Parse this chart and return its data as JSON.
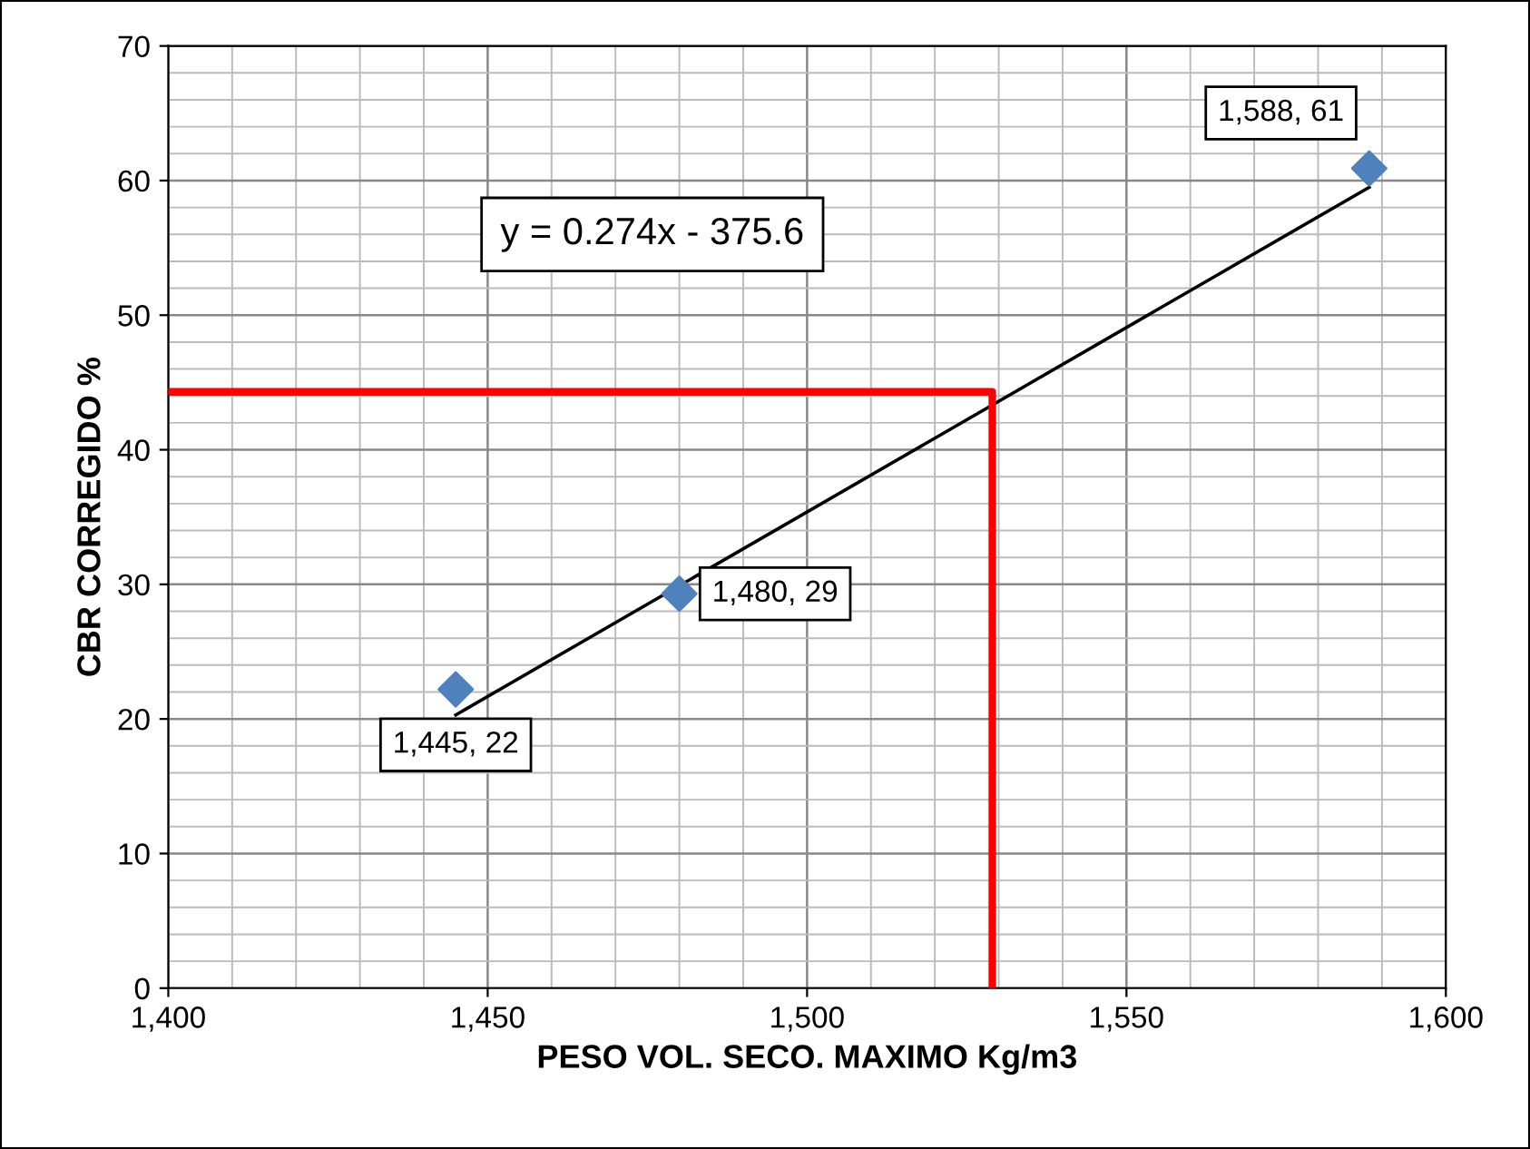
{
  "chart_data": {
    "type": "scatter",
    "xlabel": "PESO VOL. SECO. MAXIMO Kg/m3",
    "ylabel": "CBR CORREGIDO %",
    "series": [
      {
        "color": "#4f81bd",
        "marker": "diamond",
        "x": [
          1445,
          1480,
          1588
        ],
        "values": [
          22.2,
          29.3,
          60.9
        ],
        "value_labels": [
          "1,445, 22",
          "1,480, 29",
          "1,588, 61"
        ]
      },
      {
        "type": "line",
        "color": "#000000",
        "marker": "none",
        "x": [
          1445,
          1588
        ],
        "values": [
          20.3,
          59.5
        ]
      },
      {
        "type": "line",
        "color": "#ff0000",
        "marker": "none",
        "x": [
          1400,
          1529,
          1529
        ],
        "values": [
          44.3,
          44.3,
          0
        ]
      }
    ],
    "annotations": [
      "y = 0.274x - 375.6"
    ],
    "xlim": [
      1400,
      1600
    ],
    "xticks": [
      {
        "value": 1400,
        "label": "1,400"
      },
      {
        "value": 1450,
        "label": "1,450"
      },
      {
        "value": 1500,
        "label": "1,500"
      },
      {
        "value": 1550,
        "label": "1,550"
      },
      {
        "value": 1600,
        "label": "1,600"
      }
    ],
    "ylim": [
      0,
      70
    ],
    "yticks": [
      0,
      10,
      20,
      30,
      40,
      50,
      60,
      70
    ],
    "grid": true,
    "legend": false
  }
}
